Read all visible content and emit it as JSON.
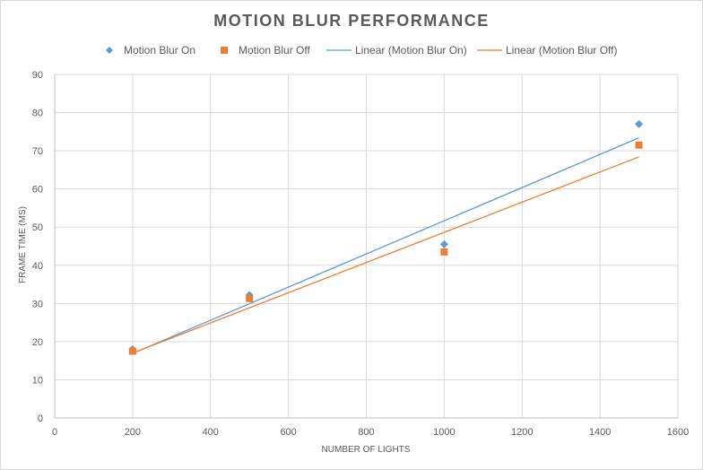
{
  "chart_data": {
    "type": "scatter",
    "title": "MOTION BLUR PERFORMANCE",
    "xlabel": "NUMBER OF LIGHTS",
    "ylabel": "FRAME TIME (MS)",
    "xlim": [
      0,
      1600
    ],
    "ylim": [
      0,
      90
    ],
    "xticks": [
      "0",
      "200",
      "400",
      "600",
      "800",
      "1000",
      "1200",
      "1400",
      "1600"
    ],
    "yticks": [
      "0",
      "10",
      "20",
      "30",
      "40",
      "50",
      "60",
      "70",
      "80",
      "90"
    ],
    "grid": true,
    "legend_position": "top",
    "legend": [
      "Motion Blur On",
      "Motion Blur Off",
      "Linear (Motion Blur On)",
      "Linear (Motion Blur Off)"
    ],
    "series": [
      {
        "name": "Motion Blur On",
        "marker": "diamond",
        "color": "#5B9BD5",
        "x": [
          200,
          500,
          1000,
          1500
        ],
        "y": [
          18,
          32.2,
          45.5,
          77
        ]
      },
      {
        "name": "Motion Blur Off",
        "marker": "square",
        "color": "#ED7D31",
        "x": [
          200,
          500,
          1000,
          1500
        ],
        "y": [
          17.5,
          31.3,
          43.5,
          71.5
        ]
      }
    ],
    "trendlines": [
      {
        "name": "Linear (Motion Blur On)",
        "type": "linear",
        "color": "#5B9BD5",
        "x": [
          200,
          1500
        ],
        "y": [
          16.9,
          73.4
        ]
      },
      {
        "name": "Linear (Motion Blur Off)",
        "type": "linear",
        "color": "#ED7D31",
        "x": [
          200,
          1500
        ],
        "y": [
          17.0,
          68.4
        ]
      }
    ]
  }
}
